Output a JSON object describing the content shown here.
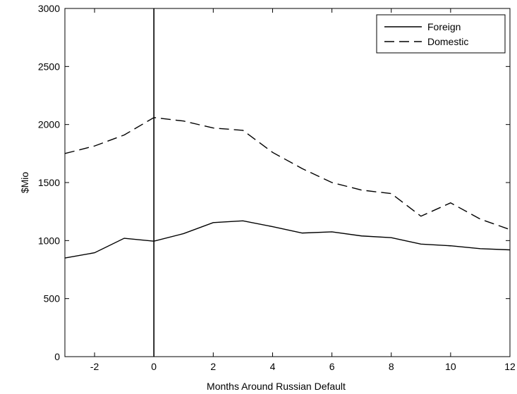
{
  "chart_data": {
    "type": "line",
    "title": "",
    "xlabel": "Months Around Russian Default",
    "ylabel": "$Mio",
    "xlim": [
      -3,
      12
    ],
    "ylim": [
      0,
      3000
    ],
    "xticks": [
      -2,
      0,
      2,
      4,
      6,
      8,
      10,
      12
    ],
    "yticks": [
      0,
      500,
      1000,
      1500,
      2000,
      2500,
      3000
    ],
    "grid": false,
    "legend_position": "top-right",
    "vline_x": 0,
    "x": [
      -3,
      -2,
      -1,
      0,
      1,
      2,
      3,
      4,
      5,
      6,
      7,
      8,
      9,
      10,
      11,
      12
    ],
    "series": [
      {
        "name": "Foreign",
        "style": "solid",
        "color": "#000000",
        "values": [
          850,
          895,
          1020,
          995,
          1060,
          1155,
          1170,
          1120,
          1065,
          1075,
          1040,
          1025,
          970,
          955,
          930,
          920
        ]
      },
      {
        "name": "Domestic",
        "style": "dashed",
        "color": "#000000",
        "values": [
          1750,
          1815,
          1910,
          2060,
          2030,
          1970,
          1950,
          1760,
          1620,
          1500,
          1435,
          1405,
          1210,
          1325,
          1185,
          1095
        ]
      }
    ]
  }
}
